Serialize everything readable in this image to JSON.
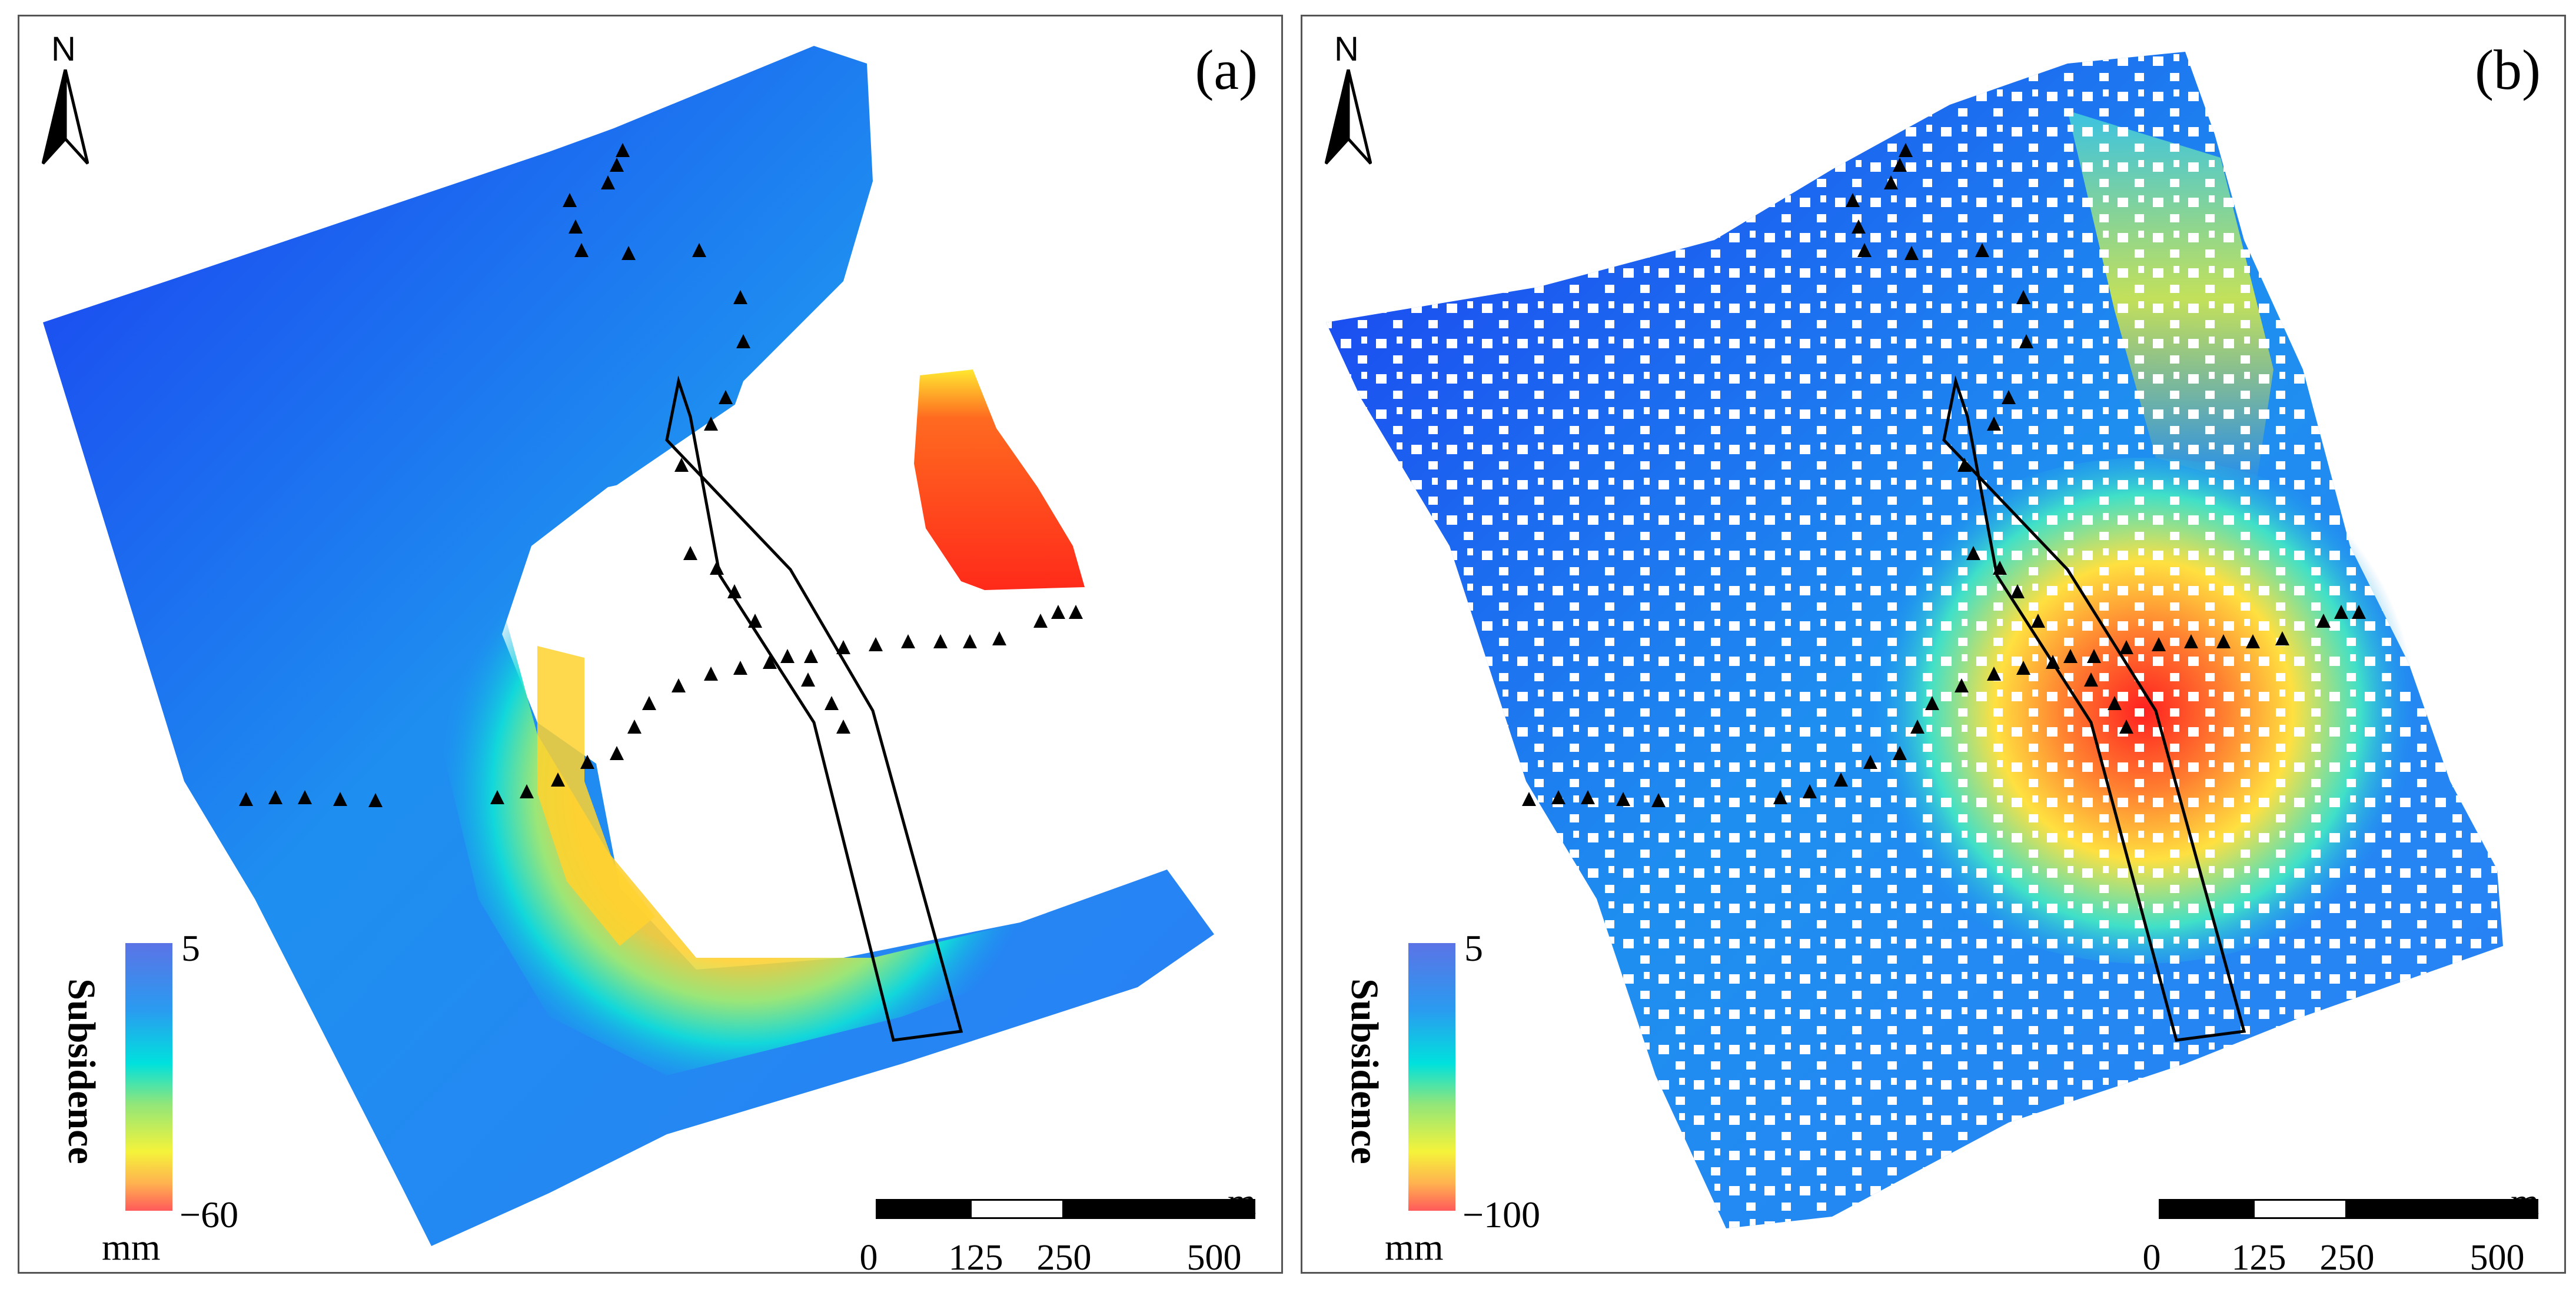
{
  "panels": [
    {
      "id": "a",
      "label": "(a)",
      "north_label": "N",
      "legend": {
        "title": "Subsidence",
        "max": "5",
        "min": "−60",
        "unit": "mm",
        "colors": [
          "#5b73e6",
          "#2a9bf0",
          "#00e1dd",
          "#90e67a",
          "#f5f33a",
          "#ffb050",
          "#ff5a5a"
        ]
      },
      "scalebar": {
        "ticks": [
          "0",
          "125",
          "250",
          "500"
        ],
        "unit": "m"
      }
    },
    {
      "id": "b",
      "label": "(b)",
      "north_label": "N",
      "legend": {
        "title": "Subsidence",
        "max": "5",
        "min": "−100",
        "unit": "mm",
        "colors": [
          "#5b73e6",
          "#2a9bf0",
          "#00e1dd",
          "#90e67a",
          "#f5f33a",
          "#ffb050",
          "#ff5a5a"
        ]
      },
      "scalebar": {
        "ticks": [
          "0",
          "125",
          "250",
          "500"
        ],
        "unit": "m"
      }
    }
  ]
}
